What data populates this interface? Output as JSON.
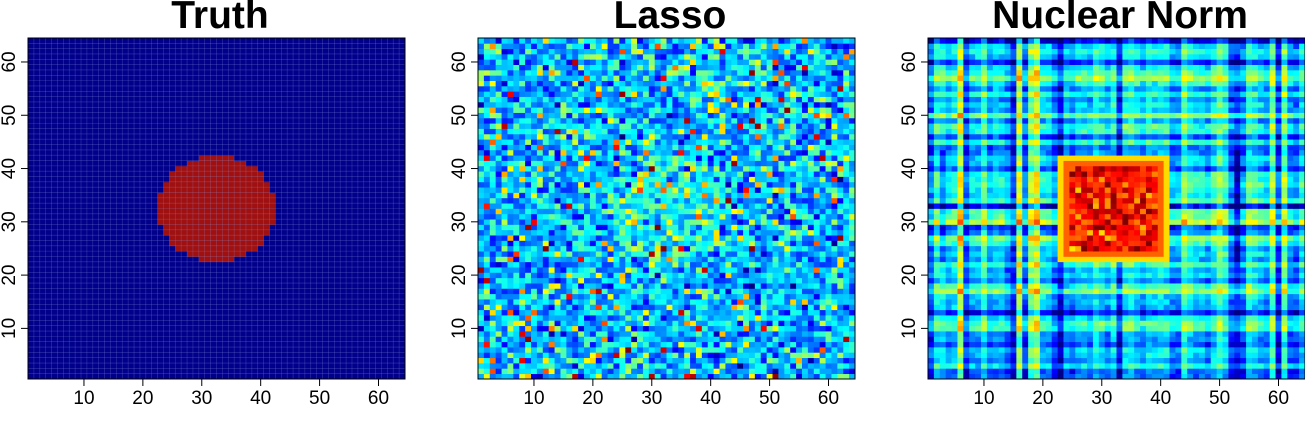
{
  "chart_data": [
    {
      "type": "heatmap",
      "title": "Truth",
      "xlim": [
        1,
        64
      ],
      "ylim": [
        1,
        64
      ],
      "x_ticks": [
        10,
        20,
        30,
        40,
        50,
        60
      ],
      "y_ticks": [
        10,
        20,
        30,
        40,
        50,
        60
      ],
      "grid": 64,
      "background_color": "#00008B",
      "foreground_color": "#A01010",
      "disk": {
        "center_x": 32.5,
        "center_y": 32.5,
        "radius": 10
      }
    },
    {
      "type": "heatmap",
      "title": "Lasso",
      "xlim": [
        1,
        64
      ],
      "ylim": [
        1,
        64
      ],
      "x_ticks": [
        10,
        20,
        30,
        40,
        50,
        60
      ],
      "y_ticks": [
        10,
        20,
        30,
        40,
        50,
        60
      ],
      "grid": 64,
      "colormap": "jet",
      "pattern": "noise with weakly elevated disk at center (32.5, 32.5)"
    },
    {
      "type": "heatmap",
      "title": "Nuclear Norm",
      "xlim": [
        1,
        64
      ],
      "ylim": [
        1,
        64
      ],
      "x_ticks": [
        10,
        20,
        30,
        40,
        50,
        60
      ],
      "y_ticks": [
        10,
        20,
        30,
        40,
        50,
        60
      ],
      "grid": 64,
      "colormap": "jet",
      "pattern": "low-rank blocky estimate with high-value square block x 23-41, y 23-42"
    }
  ]
}
